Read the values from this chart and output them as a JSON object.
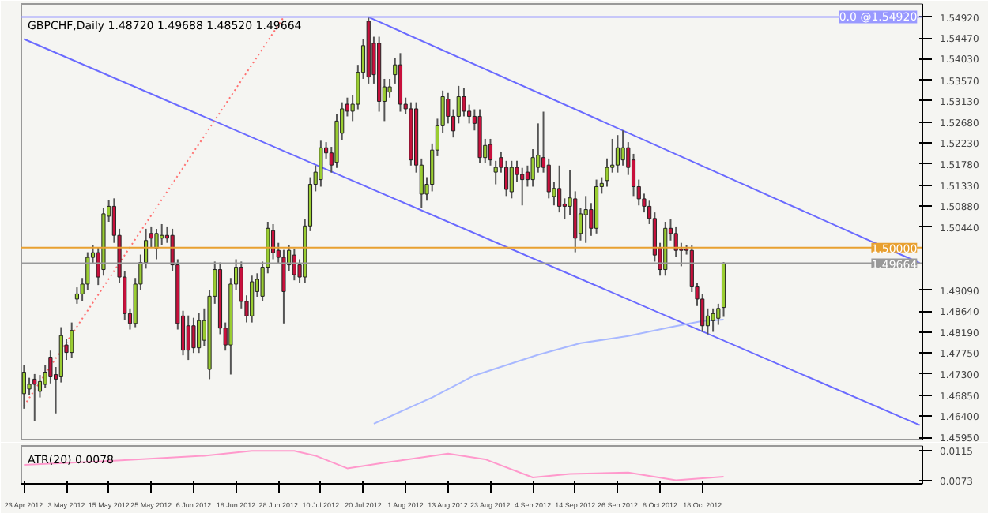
{
  "chart_data": [
    {
      "type": "candlestick",
      "title": "GBPCHF,Daily  1.48720 1.49688 1.48520 1.49664",
      "categories": [
        null,
        null,
        null,
        null,
        null,
        null,
        null,
        null,
        null,
        null,
        null,
        null,
        null,
        null,
        null,
        null,
        null,
        null,
        null,
        null,
        null,
        null,
        null,
        null,
        null,
        null,
        null,
        null,
        null,
        null,
        null,
        null,
        null,
        null,
        null,
        null,
        null,
        null,
        null,
        null,
        null,
        null,
        null,
        null,
        null,
        null,
        null,
        null,
        null,
        null,
        null,
        null,
        null,
        null,
        null,
        null,
        null,
        null,
        null,
        null,
        null,
        null,
        null,
        null,
        null,
        null,
        null,
        null,
        null,
        null,
        null,
        null,
        null,
        null,
        null,
        null,
        null,
        null,
        null,
        null,
        null,
        null,
        null,
        null,
        null,
        null,
        null,
        null,
        null,
        null,
        null,
        null,
        null,
        null,
        null,
        null,
        null,
        null,
        null,
        null,
        null,
        null,
        null,
        null,
        null,
        null,
        null,
        null,
        null,
        null,
        null,
        null,
        null,
        null,
        null,
        null,
        null,
        null,
        null,
        null,
        null,
        null,
        null,
        null,
        null,
        null,
        null,
        null,
        null,
        null,
        null,
        null,
        null,
        null,
        null,
        null,
        null,
        null,
        null,
        null,
        null,
        null,
        null,
        null,
        null,
        null,
        null,
        null,
        null,
        null,
        null,
        null,
        null,
        null,
        null,
        null,
        null,
        null,
        null,
        null,
        null,
        null,
        null,
        null,
        null,
        null,
        null,
        null,
        null,
        null
      ],
      "ohlc": [
        [
          1.4688,
          1.475,
          1.4656,
          1.4734
        ],
        [
          1.4698,
          1.4722,
          1.4685,
          1.4708
        ],
        [
          1.4719,
          1.473,
          1.463,
          1.4708
        ],
        [
          1.4693,
          1.4728,
          1.468,
          1.4714
        ],
        [
          1.4708,
          1.475,
          1.47,
          1.4734
        ],
        [
          1.4766,
          1.478,
          1.471,
          1.4724
        ],
        [
          1.4729,
          1.4745,
          1.4646,
          1.4719
        ],
        [
          1.4724,
          1.483,
          1.4712,
          1.4812
        ],
        [
          1.4792,
          1.4805,
          1.476,
          1.4776
        ],
        [
          1.4776,
          1.484,
          1.4765,
          1.4823
        ],
        [
          1.489,
          1.4915,
          1.488,
          1.4901
        ],
        [
          1.4901,
          1.4935,
          1.4885,
          1.4922
        ],
        [
          1.4922,
          1.499,
          1.491,
          1.4979
        ],
        [
          1.4979,
          1.5005,
          1.4965,
          1.4989
        ],
        [
          1.4989,
          1.5,
          1.492,
          1.4937
        ],
        [
          1.4953,
          1.5085,
          1.494,
          1.5072
        ],
        [
          1.5067,
          1.5102,
          1.5055,
          1.5088
        ],
        [
          1.5088,
          1.5105,
          1.501,
          1.5026
        ],
        [
          1.5026,
          1.504,
          1.4925,
          1.4937
        ],
        [
          1.4937,
          1.495,
          1.4845,
          1.4859
        ],
        [
          1.4859,
          1.487,
          1.4825,
          1.4838
        ],
        [
          1.4838,
          1.4935,
          1.483,
          1.4922
        ],
        [
          1.4922,
          1.4985,
          1.491,
          1.4968
        ],
        [
          1.4968,
          1.504,
          1.4955,
          1.5015
        ],
        [
          1.503,
          1.5045,
          1.5,
          1.502
        ],
        [
          1.4999,
          1.504,
          1.4975,
          1.503
        ],
        [
          1.502,
          1.505,
          1.5005,
          1.5026
        ],
        [
          1.5026,
          1.5045,
          1.501,
          1.502
        ],
        [
          1.5026,
          1.504,
          1.495,
          1.4963
        ],
        [
          1.4963,
          1.4975,
          1.4825,
          1.4838
        ],
        [
          1.4854,
          1.4865,
          1.477,
          1.4781
        ],
        [
          1.4833,
          1.4855,
          1.476,
          1.4781
        ],
        [
          1.4833,
          1.485,
          1.4775,
          1.4786
        ],
        [
          1.4786,
          1.486,
          1.4775,
          1.4844
        ],
        [
          1.4802,
          1.487,
          1.479,
          1.4844
        ],
        [
          1.474,
          1.491,
          1.4719,
          1.4896
        ],
        [
          1.4896,
          1.497,
          1.488,
          1.4953
        ],
        [
          1.4953,
          1.4968,
          1.4815,
          1.4828
        ],
        [
          1.4828,
          1.484,
          1.478,
          1.4792
        ],
        [
          1.4792,
          1.4935,
          1.4729,
          1.4922
        ],
        [
          1.4922,
          1.4975,
          1.491,
          1.4958
        ],
        [
          1.4958,
          1.497,
          1.487,
          1.4885
        ],
        [
          1.4885,
          1.4898,
          1.484,
          1.4854
        ],
        [
          1.4854,
          1.494,
          1.484,
          1.4927
        ],
        [
          1.4906,
          1.4945,
          1.4895,
          1.4932
        ],
        [
          1.4896,
          1.497,
          1.4885,
          1.4958
        ],
        [
          1.4958,
          1.5055,
          1.4945,
          1.5041
        ],
        [
          1.5036,
          1.505,
          1.4975,
          1.4989
        ],
        [
          1.4994,
          1.501,
          1.4965,
          1.4979
        ],
        [
          1.4979,
          1.4995,
          1.4838,
          1.4906
        ],
        [
          1.4963,
          1.5005,
          1.495,
          1.4994
        ],
        [
          1.4984,
          1.4998,
          1.493,
          1.4942
        ],
        [
          1.4963,
          1.4975,
          1.4925,
          1.4937
        ],
        [
          1.4937,
          1.506,
          1.4925,
          1.5046
        ],
        [
          1.5046,
          1.515,
          1.5035,
          1.5135
        ],
        [
          1.5135,
          1.5175,
          1.512,
          1.5161
        ],
        [
          1.5145,
          1.5228,
          1.513,
          1.5213
        ],
        [
          1.5213,
          1.5225,
          1.519,
          1.5202
        ],
        [
          1.5202,
          1.5215,
          1.516,
          1.5176
        ],
        [
          1.5182,
          1.5285,
          1.517,
          1.527
        ],
        [
          1.5244,
          1.531,
          1.523,
          1.5296
        ],
        [
          1.5306,
          1.532,
          1.528,
          1.5291
        ],
        [
          1.5291,
          1.5325,
          1.527,
          1.5306
        ],
        [
          1.5306,
          1.539,
          1.5295,
          1.5374
        ],
        [
          1.5374,
          1.5445,
          1.536,
          1.5431
        ],
        [
          1.5483,
          1.5492,
          1.535,
          1.5364
        ],
        [
          1.5436,
          1.545,
          1.535,
          1.5369
        ],
        [
          1.5436,
          1.545,
          1.529,
          1.5312
        ],
        [
          1.5312,
          1.536,
          1.527,
          1.5343
        ],
        [
          1.5332,
          1.536,
          1.532,
          1.5343
        ],
        [
          1.5369,
          1.5405,
          1.535,
          1.539
        ],
        [
          1.539,
          1.5415,
          1.529,
          1.5306
        ],
        [
          1.5306,
          1.532,
          1.5285,
          1.5296
        ],
        [
          1.5296,
          1.531,
          1.5175,
          1.5187
        ],
        [
          1.5296,
          1.531,
          1.516,
          1.5176
        ],
        [
          1.5114,
          1.519,
          1.5084,
          1.5176
        ],
        [
          1.5114,
          1.515,
          1.51,
          1.5135
        ],
        [
          1.5135,
          1.5222,
          1.512,
          1.5208
        ],
        [
          1.5208,
          1.5275,
          1.5195,
          1.526
        ],
        [
          1.526,
          1.5335,
          1.5245,
          1.5322
        ],
        [
          1.5317,
          1.533,
          1.5265,
          1.528
        ],
        [
          1.528,
          1.5295,
          1.5235,
          1.5249
        ],
        [
          1.528,
          1.5345,
          1.5265,
          1.5322
        ],
        [
          1.5322,
          1.534,
          1.528,
          1.5291
        ],
        [
          1.5291,
          1.5305,
          1.5265,
          1.528
        ],
        [
          1.528,
          1.5295,
          1.525,
          1.5265
        ],
        [
          1.528,
          1.5295,
          1.518,
          1.5192
        ],
        [
          1.5192,
          1.5232,
          1.518,
          1.5218
        ],
        [
          1.522,
          1.5232,
          1.5175,
          1.5187
        ],
        [
          1.5161,
          1.5185,
          1.5135,
          1.5171
        ],
        [
          1.5192,
          1.5205,
          1.516,
          1.5171
        ],
        [
          1.5171,
          1.5185,
          1.511,
          1.5124
        ],
        [
          1.5119,
          1.5185,
          1.5105,
          1.5171
        ],
        [
          1.5171,
          1.5185,
          1.514,
          1.5156
        ],
        [
          1.5156,
          1.517,
          1.509,
          1.5145
        ],
        [
          1.5161,
          1.5175,
          1.513,
          1.5145
        ],
        [
          1.5145,
          1.521,
          1.513,
          1.5192
        ],
        [
          1.5171,
          1.5265,
          1.516,
          1.5197
        ],
        [
          1.5192,
          1.529,
          1.516,
          1.5171
        ],
        [
          1.5176,
          1.519,
          1.5105,
          1.5119
        ],
        [
          1.5109,
          1.514,
          1.509,
          1.5126
        ],
        [
          1.5126,
          1.5175,
          1.5075,
          1.5088
        ],
        [
          1.5093,
          1.5105,
          1.506,
          1.5088
        ],
        [
          1.5088,
          1.5165,
          1.507,
          1.5106
        ],
        [
          1.5104,
          1.512,
          1.499,
          1.502
        ],
        [
          1.503,
          1.5085,
          1.5015,
          1.5072
        ],
        [
          1.507,
          1.511,
          1.501,
          1.5081
        ],
        [
          1.5081,
          1.5095,
          1.5025,
          1.5041
        ],
        [
          1.5041,
          1.5145,
          1.503,
          1.513
        ],
        [
          1.513,
          1.515,
          1.5115,
          1.5137
        ],
        [
          1.5143,
          1.519,
          1.513,
          1.5171
        ],
        [
          1.5171,
          1.5232,
          1.516,
          1.5176
        ],
        [
          1.5176,
          1.524,
          1.516,
          1.5213
        ],
        [
          1.5187,
          1.525,
          1.5175,
          1.5213
        ],
        [
          1.5213,
          1.5225,
          1.5155,
          1.5171
        ],
        [
          1.5187,
          1.52,
          1.511,
          1.513
        ],
        [
          1.513,
          1.5145,
          1.509,
          1.5104
        ],
        [
          1.5104,
          1.5115,
          1.5075,
          1.5088
        ],
        [
          1.5088,
          1.51,
          1.505,
          1.5062
        ],
        [
          1.5062,
          1.5075,
          1.497,
          1.4984
        ],
        [
          1.4999,
          1.501,
          1.494,
          1.4953
        ],
        [
          1.4953,
          1.5055,
          1.494,
          1.5041
        ],
        [
          1.5041,
          1.506,
          1.5015,
          1.503
        ],
        [
          1.503,
          1.5045,
          1.498,
          1.4994
        ],
        [
          1.4997,
          1.501,
          1.496,
          1.4994
        ],
        [
          1.4997,
          1.5005,
          1.4985,
          1.4994
        ],
        [
          1.4994,
          1.5005,
          1.4905,
          1.4916
        ],
        [
          1.4916,
          1.4925,
          1.4875,
          1.489
        ],
        [
          1.489,
          1.49,
          1.482,
          1.4833
        ],
        [
          1.4833,
          1.487,
          1.4815,
          1.4854
        ],
        [
          1.4844,
          1.487,
          1.482,
          1.4859
        ],
        [
          1.4849,
          1.488,
          1.4835,
          1.487
        ],
        [
          1.4872,
          1.4969,
          1.4852,
          1.4966
        ],
        null,
        null,
        null,
        null,
        null,
        null,
        null,
        null,
        null,
        null,
        null,
        null,
        null,
        null,
        null,
        null,
        null,
        null,
        null,
        null,
        null,
        null,
        null,
        null,
        null,
        null,
        null,
        null,
        null,
        null,
        null,
        null,
        null,
        null,
        null,
        null,
        null
      ],
      "colors": [
        "#9acd32",
        "#9acd32",
        "#c8103c",
        "#9acd32",
        "#9acd32",
        "#c8103c",
        "#c8103c",
        "#9acd32",
        "#c8103c",
        "#9acd32",
        "#9acd32",
        "#9acd32",
        "#9acd32",
        "#9acd32",
        "#c8103c",
        "#9acd32",
        "#9acd32",
        "#c8103c",
        "#c8103c",
        "#c8103c",
        "#c8103c",
        "#9acd32",
        "#9acd32",
        "#9acd32",
        "#c8103c",
        "#9acd32",
        "#9acd32",
        "#c8103c",
        "#c8103c",
        "#c8103c",
        "#c8103c",
        "#c8103c",
        "#c8103c",
        "#9acd32",
        "#9acd32",
        "#9acd32",
        "#9acd32",
        "#c8103c",
        "#c8103c",
        "#9acd32",
        "#9acd32",
        "#c8103c",
        "#c8103c",
        "#9acd32",
        "#9acd32",
        "#9acd32",
        "#9acd32",
        "#c8103c",
        "#c8103c",
        "#c8103c",
        "#9acd32",
        "#c8103c",
        "#c8103c",
        "#9acd32",
        "#9acd32",
        "#9acd32",
        "#9acd32",
        "#c8103c",
        "#c8103c",
        "#9acd32",
        "#9acd32",
        "#c8103c",
        "#9acd32",
        "#9acd32",
        "#9acd32",
        "#c8103c",
        "#c8103c",
        "#c8103c",
        "#9acd32",
        "#9acd32",
        "#9acd32",
        "#c8103c",
        "#c8103c",
        "#c8103c",
        "#c8103c",
        "#9acd32",
        "#9acd32",
        "#9acd32",
        "#9acd32",
        "#9acd32",
        "#c8103c",
        "#c8103c",
        "#9acd32",
        "#c8103c",
        "#c8103c",
        "#c8103c",
        "#c8103c",
        "#9acd32",
        "#c8103c",
        "#9acd32",
        "#c8103c",
        "#c8103c",
        "#9acd32",
        "#c8103c",
        "#c8103c",
        "#c8103c",
        "#9acd32",
        "#9acd32",
        "#c8103c",
        "#c8103c",
        "#9acd32",
        "#c8103c",
        "#c8103c",
        "#9acd32",
        "#c8103c",
        "#9acd32",
        "#9acd32",
        "#c8103c",
        "#9acd32",
        "#9acd32",
        "#9acd32",
        "#9acd32",
        "#9acd32",
        "#9acd32",
        "#c8103c",
        "#c8103c",
        "#c8103c",
        "#c8103c",
        "#c8103c",
        "#c8103c",
        "#c8103c",
        "#9acd32",
        "#c8103c",
        "#c8103c",
        "#c8103c",
        "#c8103c",
        "#c8103c",
        "#c8103c",
        "#c8103c",
        "#9acd32",
        "#9acd32",
        "#9acd32",
        "#9acd32",
        null,
        null,
        null,
        null,
        null,
        null,
        null,
        null,
        null,
        null,
        null,
        null,
        null,
        null,
        null,
        null,
        null,
        null,
        null,
        null,
        null,
        null,
        null,
        null,
        null,
        null,
        null,
        null,
        null,
        null,
        null,
        null,
        null,
        null,
        null,
        null,
        null
      ],
      "series": [
        {
          "type": "line",
          "color": "#6a6aff",
          "values": [
            null,
            null,
            null,
            null,
            null,
            null,
            null,
            null,
            null,
            null,
            null,
            null,
            null,
            null,
            null,
            null,
            null,
            null,
            null,
            null,
            null,
            null,
            null,
            null,
            null,
            null,
            null,
            null,
            null,
            null,
            null,
            null,
            null,
            null,
            null,
            null,
            null,
            null,
            null,
            null,
            null,
            null,
            null,
            null,
            null,
            null,
            null,
            null,
            null,
            null,
            null,
            null,
            null,
            null,
            null,
            null,
            null,
            null,
            null,
            null,
            null,
            null,
            null,
            null,
            null,
            1.5492,
            null,
            null,
            null,
            null,
            null,
            null,
            null,
            null,
            null,
            null,
            null,
            null,
            null,
            null,
            null,
            null,
            null,
            null,
            null,
            null,
            null,
            null,
            null,
            null,
            null,
            null,
            null,
            null,
            null,
            null,
            null,
            null,
            null,
            null,
            null,
            null,
            null,
            null,
            null,
            null,
            null,
            null,
            null,
            null,
            null,
            null,
            null,
            null,
            null,
            null,
            null,
            null,
            null,
            null,
            null,
            null,
            null,
            null,
            null,
            null,
            null,
            null,
            null,
            null,
            null,
            null,
            null,
            null,
            null,
            null,
            null,
            null,
            null,
            null,
            null,
            null,
            null,
            null,
            null,
            null,
            null,
            null,
            null,
            null,
            null,
            null,
            null,
            null,
            null,
            null,
            null,
            null,
            null,
            null,
            null,
            null,
            null,
            null,
            null,
            null,
            null,
            null,
            null,
            1.4967
          ]
        },
        {
          "type": "line",
          "color": "#6a6aff",
          "values": [
            1.5445,
            null,
            null,
            null,
            null,
            null,
            null,
            null,
            null,
            null,
            null,
            null,
            null,
            null,
            null,
            null,
            null,
            null,
            null,
            null,
            null,
            null,
            null,
            null,
            null,
            null,
            null,
            null,
            null,
            null,
            null,
            null,
            null,
            null,
            null,
            null,
            null,
            null,
            null,
            null,
            null,
            null,
            null,
            null,
            null,
            null,
            null,
            null,
            null,
            null,
            null,
            null,
            null,
            null,
            null,
            null,
            null,
            null,
            null,
            null,
            null,
            null,
            null,
            null,
            null,
            null,
            null,
            null,
            null,
            null,
            null,
            null,
            null,
            null,
            null,
            null,
            null,
            null,
            null,
            null,
            null,
            null,
            null,
            null,
            null,
            null,
            null,
            null,
            null,
            null,
            null,
            null,
            null,
            null,
            null,
            null,
            null,
            null,
            null,
            null,
            null,
            null,
            null,
            null,
            null,
            null,
            null,
            null,
            null,
            null,
            null,
            null,
            null,
            null,
            null,
            null,
            null,
            null,
            null,
            null,
            null,
            null,
            null,
            null,
            null,
            null,
            null,
            null,
            null,
            null,
            null,
            null,
            null,
            null,
            null,
            null,
            null,
            null,
            null,
            null,
            null,
            null,
            null,
            null,
            null,
            null,
            null,
            null,
            null,
            null,
            null,
            null,
            null,
            null,
            null,
            null,
            null,
            null,
            null,
            null,
            null,
            null,
            null,
            null,
            null,
            null,
            null,
            null,
            null,
            1.4621
          ]
        },
        {
          "type": "line",
          "color": "#ff7070",
          "line_style": "dotted",
          "values": [
            1.4662,
            null,
            null,
            null,
            null,
            null,
            null,
            null,
            null,
            null,
            null,
            null,
            null,
            null,
            null,
            null,
            null,
            null,
            null,
            null,
            null,
            null,
            null,
            null,
            null,
            null,
            null,
            null,
            null,
            null,
            null,
            null,
            null,
            null,
            null,
            null,
            null,
            null,
            null,
            null,
            null,
            null,
            null,
            null,
            null,
            null,
            null,
            null,
            null,
            1.5492,
            null,
            null,
            null,
            null,
            null,
            null,
            null,
            null,
            null,
            null,
            null,
            null,
            null,
            null,
            null,
            null,
            null,
            null,
            null,
            null,
            null,
            null,
            null,
            null,
            null,
            null,
            null,
            null,
            null,
            null,
            null,
            null,
            null,
            null,
            null,
            null,
            null,
            null,
            null,
            null,
            null,
            null,
            null,
            null,
            null,
            null,
            null,
            null,
            null,
            null,
            null,
            null,
            null,
            null,
            null,
            null,
            null,
            null,
            null,
            null,
            null,
            null,
            null,
            null,
            null,
            null,
            null,
            null,
            null,
            null,
            null,
            null,
            null,
            null,
            null,
            null,
            null,
            null,
            null,
            null,
            null,
            null,
            null,
            null,
            null,
            null,
            null,
            null,
            null,
            null,
            null,
            null,
            null,
            null,
            null,
            null,
            null,
            null,
            null,
            null,
            null,
            null,
            null,
            null,
            null,
            null,
            null,
            null,
            null,
            null,
            null,
            null,
            null,
            null,
            null,
            null,
            null,
            null,
            null,
            null
          ]
        },
        {
          "type": "line",
          "color": "#a8b8ff",
          "values": [
            null,
            null,
            null,
            null,
            null,
            null,
            null,
            null,
            null,
            null,
            null,
            null,
            null,
            null,
            null,
            null,
            null,
            null,
            null,
            null,
            null,
            null,
            null,
            null,
            null,
            null,
            null,
            null,
            null,
            null,
            null,
            null,
            null,
            null,
            null,
            null,
            null,
            null,
            null,
            null,
            null,
            null,
            null,
            null,
            null,
            null,
            null,
            null,
            null,
            null,
            null,
            null,
            null,
            null,
            null,
            null,
            null,
            null,
            null,
            null,
            null,
            null,
            null,
            null,
            null,
            null,
            1.4624,
            null,
            null,
            null,
            null,
            null,
            null,
            null,
            null,
            null,
            null,
            1.468,
            null,
            null,
            null,
            null,
            null,
            null,
            null,
            1.4727,
            null,
            null,
            null,
            null,
            null,
            null,
            null,
            null,
            null,
            null,
            null,
            1.4771,
            null,
            null,
            null,
            null,
            null,
            null,
            null,
            1.4796,
            null,
            null,
            null,
            null,
            null,
            null,
            null,
            null,
            1.4811,
            null,
            null,
            null,
            null,
            null,
            null,
            null,
            1.483,
            null,
            null,
            null,
            null,
            null,
            1.4843,
            null,
            null,
            null,
            1.4846,
            null,
            null,
            null,
            null,
            null,
            null,
            null,
            null,
            null,
            null,
            null,
            null,
            null,
            null,
            null,
            null,
            null,
            null,
            null,
            null,
            null,
            null,
            null,
            null,
            null,
            null,
            null,
            null,
            null,
            null,
            null,
            null,
            null,
            null,
            null,
            null,
            null
          ]
        }
      ],
      "ref_lines": [
        {
          "axis": "y",
          "value": 1.5492,
          "label": "0.0 @1.54920",
          "color": "#9999ff"
        },
        {
          "axis": "y",
          "value": 1.5,
          "label": "1.50000",
          "color": "#e8a030"
        },
        {
          "axis": "y",
          "value": 1.49664,
          "label": "1.49664",
          "color": "#999999"
        }
      ],
      "ylim": [
        1.459,
        1.552
      ],
      "yticks": [
        {
          "value": 1.5492,
          "label": "1.54920"
        },
        {
          "value": 1.5447,
          "label": "1.54470"
        },
        {
          "value": 1.5403,
          "label": "1.54030"
        },
        {
          "value": 1.5357,
          "label": "1.53570"
        },
        {
          "value": 1.5313,
          "label": "1.53130"
        },
        {
          "value": 1.5268,
          "label": "1.52680"
        },
        {
          "value": 1.5223,
          "label": "1.52230"
        },
        {
          "value": 1.5178,
          "label": "1.51780"
        },
        {
          "value": 1.5133,
          "label": "1.51330"
        },
        {
          "value": 1.5088,
          "label": "1.50880"
        },
        {
          "value": 1.5044,
          "label": "1.50440"
        },
        {
          "value": 1.4909,
          "label": "1.49090"
        },
        {
          "value": 1.4864,
          "label": "1.48640"
        },
        {
          "value": 1.4819,
          "label": "1.48190"
        },
        {
          "value": 1.4775,
          "label": "1.47750"
        },
        {
          "value": 1.473,
          "label": "1.47300"
        },
        {
          "value": 1.4685,
          "label": "1.46850"
        },
        {
          "value": 1.464,
          "label": "1.46400"
        },
        {
          "value": 1.4595,
          "label": "1.45950"
        }
      ],
      "tick_labels": "y"
    },
    {
      "type": "line",
      "title": "ATR(20) 0.0078",
      "categories": [
        "23 Apr 2012",
        null,
        null,
        null,
        null,
        null,
        null,
        null,
        "3 May 2012",
        null,
        null,
        null,
        null,
        null,
        null,
        null,
        "15 May 2012",
        null,
        null,
        null,
        null,
        null,
        null,
        null,
        "25 May 2012",
        null,
        null,
        null,
        null,
        null,
        null,
        null,
        "6 Jun 2012",
        null,
        null,
        null,
        null,
        null,
        null,
        null,
        "18 Jun 2012",
        null,
        null,
        null,
        null,
        null,
        null,
        null,
        "28 Jun 2012",
        null,
        null,
        null,
        null,
        null,
        null,
        null,
        "10 Jul 2012",
        null,
        null,
        null,
        null,
        null,
        null,
        null,
        "20 Jul 2012",
        null,
        null,
        null,
        null,
        null,
        null,
        null,
        "1 Aug 2012",
        null,
        null,
        null,
        null,
        null,
        null,
        null,
        "13 Aug 2012",
        null,
        null,
        null,
        null,
        null,
        null,
        null,
        "23 Aug 2012",
        null,
        null,
        null,
        null,
        null,
        null,
        null,
        "4 Sep 2012",
        null,
        null,
        null,
        null,
        null,
        null,
        null,
        "14 Sep 2012",
        null,
        null,
        null,
        null,
        null,
        null,
        null,
        "26 Sep 2012",
        null,
        null,
        null,
        null,
        null,
        null,
        null,
        "8 Oct 2012",
        null,
        null,
        null,
        null,
        null,
        null,
        null,
        "18 Oct 2012",
        null,
        null,
        null,
        null,
        null,
        null,
        null,
        null,
        null,
        null,
        null,
        null,
        null,
        null,
        null,
        null,
        null,
        null,
        null,
        null,
        null,
        null,
        null,
        null,
        null,
        null,
        null,
        null,
        null,
        null,
        null,
        null,
        null,
        null,
        null,
        null,
        null,
        null,
        null,
        null,
        null
      ],
      "series": [
        {
          "color": "#ff99cc",
          "values": [
            0.0095,
            null,
            null,
            null,
            null,
            null,
            null,
            null,
            null,
            null,
            null,
            null,
            null,
            null,
            null,
            null,
            null,
            0.0101,
            null,
            null,
            null,
            null,
            null,
            null,
            null,
            null,
            null,
            null,
            null,
            null,
            null,
            null,
            null,
            null,
            0.0108,
            null,
            null,
            null,
            null,
            null,
            null,
            null,
            null,
            0.0115,
            null,
            null,
            null,
            null,
            null,
            null,
            null,
            0.0115,
            null,
            null,
            null,
            0.0108,
            null,
            null,
            null,
            null,
            null,
            0.009,
            null,
            null,
            null,
            null,
            null,
            null,
            0.0098,
            null,
            null,
            null,
            null,
            null,
            null,
            null,
            null,
            null,
            null,
            null,
            0.0111,
            null,
            null,
            null,
            null,
            null,
            null,
            0.0103,
            null,
            null,
            null,
            null,
            null,
            null,
            null,
            null,
            0.0077,
            null,
            null,
            null,
            null,
            null,
            null,
            0.0082,
            null,
            null,
            null,
            null,
            null,
            null,
            null,
            null,
            null,
            null,
            0.0084,
            null,
            null,
            null,
            null,
            null,
            null,
            null,
            null,
            0.0073,
            null,
            null,
            null,
            null,
            null,
            null,
            null,
            null,
            0.0078,
            null,
            null,
            null,
            null,
            null,
            null,
            null,
            null,
            null,
            null,
            null,
            null,
            null,
            null,
            null,
            null,
            null,
            null,
            null,
            null,
            null,
            null,
            null,
            null,
            null,
            null,
            null,
            null,
            null,
            null,
            null,
            null,
            null,
            null,
            null,
            null,
            null
          ]
        }
      ],
      "ylim": [
        0.0068,
        0.0122
      ],
      "yticks": [
        0.0115,
        0.0073
      ]
    }
  ]
}
